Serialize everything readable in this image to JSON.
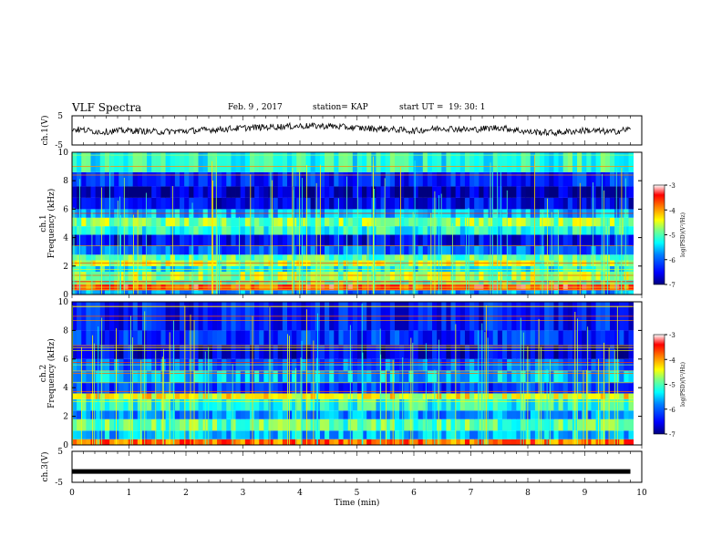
{
  "header": {
    "title": "VLF Spectra",
    "date": "Feb. 9 , 2017",
    "station": "station= KAP",
    "start_label": "start UT =",
    "start_time": "19: 30: 1"
  },
  "colors": {
    "spectrogram_scale": [
      "#00007f",
      "#0000ff",
      "#0080ff",
      "#00ffff",
      "#80ff80",
      "#ffff00",
      "#ff8000",
      "#ff0000",
      "#ffffff"
    ],
    "trace": "#000000",
    "axis": "#000000",
    "background": "#ffffff"
  },
  "chart_data": [
    {
      "type": "line",
      "ylabel": "ch.1(V)",
      "ylim": [
        -5,
        5
      ],
      "yticks": [
        "5",
        "-5"
      ],
      "x": [
        0,
        0.5,
        1,
        1.5,
        2,
        2.5,
        3,
        3.5,
        4,
        4.5,
        5,
        5.5,
        6,
        6.5,
        7,
        7.5,
        8,
        8.5,
        9,
        9.5,
        9.8
      ],
      "values": [
        0.5,
        -0.5,
        0.0,
        -0.5,
        -0.2,
        0.3,
        0.8,
        1.2,
        1.5,
        1.5,
        0.8,
        0.5,
        -0.2,
        0.8,
        0.2,
        1.0,
        -0.5,
        -0.8,
        0.0,
        -0.5,
        0.5
      ],
      "xlim": [
        0,
        10
      ]
    },
    {
      "type": "heatmap",
      "ylabel": "ch.1",
      "ylabel2": "Frequency (kHz)",
      "ylim": [
        0,
        10
      ],
      "yticks": [
        "0",
        "2",
        "4",
        "6",
        "8",
        "10"
      ],
      "xlim": [
        0,
        10
      ],
      "colorbar_label": "log(PSD)(V²/Hz)",
      "colorbar_ticks": [
        "-3",
        "-4",
        "-5",
        "-6",
        "-7"
      ],
      "colorbar_range": [
        -7,
        -3
      ],
      "bands_khz": [
        {
          "f0": 0.0,
          "f1": 0.3,
          "level": -5.8
        },
        {
          "f0": 0.3,
          "f1": 0.7,
          "level": -3.6
        },
        {
          "f0": 0.7,
          "f1": 1.0,
          "level": -5.0
        },
        {
          "f0": 1.0,
          "f1": 1.6,
          "level": -4.7
        },
        {
          "f0": 1.6,
          "f1": 2.0,
          "level": -5.3
        },
        {
          "f0": 2.0,
          "f1": 2.4,
          "level": -4.6
        },
        {
          "f0": 2.4,
          "f1": 2.8,
          "level": -4.9
        },
        {
          "f0": 2.8,
          "f1": 3.4,
          "level": -6.0
        },
        {
          "f0": 3.4,
          "f1": 4.2,
          "level": -6.5
        },
        {
          "f0": 4.2,
          "f1": 4.8,
          "level": -5.2
        },
        {
          "f0": 4.8,
          "f1": 5.4,
          "level": -4.8
        },
        {
          "f0": 5.4,
          "f1": 6.0,
          "level": -5.6
        },
        {
          "f0": 6.0,
          "f1": 6.8,
          "level": -6.5
        },
        {
          "f0": 6.8,
          "f1": 7.6,
          "level": -6.8
        },
        {
          "f0": 7.6,
          "f1": 8.6,
          "level": -6.3
        },
        {
          "f0": 8.6,
          "f1": 10.0,
          "level": -5.2
        }
      ]
    },
    {
      "type": "heatmap",
      "ylabel": "ch.2",
      "ylabel2": "Frequency (kHz)",
      "ylim": [
        0,
        10
      ],
      "yticks": [
        "0",
        "2",
        "4",
        "6",
        "8",
        "10"
      ],
      "xlim": [
        0,
        10
      ],
      "colorbar_label": "log(PSD)(V²/Hz)",
      "colorbar_ticks": [
        "-3",
        "-4",
        "-5",
        "-6",
        "-7"
      ],
      "colorbar_range": [
        -7,
        -3
      ],
      "bands_khz": [
        {
          "f0": 0.0,
          "f1": 0.4,
          "level": -3.8
        },
        {
          "f0": 0.4,
          "f1": 1.0,
          "level": -5.6
        },
        {
          "f0": 1.0,
          "f1": 1.8,
          "level": -5.0
        },
        {
          "f0": 1.8,
          "f1": 2.4,
          "level": -5.8
        },
        {
          "f0": 2.4,
          "f1": 3.2,
          "level": -5.2
        },
        {
          "f0": 3.2,
          "f1": 3.6,
          "level": -4.4
        },
        {
          "f0": 3.6,
          "f1": 4.4,
          "level": -6.2
        },
        {
          "f0": 4.4,
          "f1": 5.2,
          "level": -5.6
        },
        {
          "f0": 5.2,
          "f1": 6.0,
          "level": -6.0
        },
        {
          "f0": 6.0,
          "f1": 7.0,
          "level": -6.6
        },
        {
          "f0": 7.0,
          "f1": 8.0,
          "level": -6.3
        },
        {
          "f0": 8.0,
          "f1": 10.0,
          "level": -6.4
        }
      ]
    },
    {
      "type": "line",
      "ylabel": "ch.3(V)",
      "ylim": [
        -5,
        5
      ],
      "yticks": [
        "5",
        "-5"
      ],
      "x": [
        0,
        9.8
      ],
      "values": [
        -1.5,
        -1.5
      ],
      "xlim": [
        0,
        10
      ],
      "xlabel": "Time (min)",
      "xticks": [
        "0",
        "1",
        "2",
        "3",
        "4",
        "5",
        "6",
        "7",
        "8",
        "9",
        "10"
      ]
    }
  ]
}
